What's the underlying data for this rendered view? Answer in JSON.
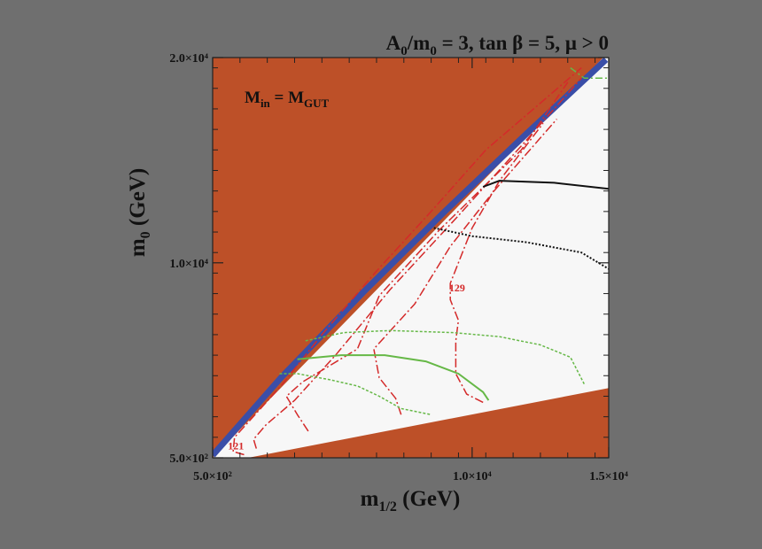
{
  "page": {
    "background": "#6f6f6f"
  },
  "chart_data": {
    "type": "line",
    "title": {
      "main_a": "A",
      "sub_a": "0",
      "main_b": "/m",
      "sub_b": "0",
      "rest": " = 3, tan β = 5, μ > 0"
    },
    "annotation": {
      "main_a": "M",
      "sub_a": "in",
      "main_b": " = M",
      "sub_b": "GUT"
    },
    "xlabel": {
      "main": "m",
      "sub": "1/2",
      "rest": " (GeV)"
    },
    "ylabel": {
      "main": "m",
      "sub": "0",
      "rest": " (GeV)"
    },
    "xlim": [
      500,
      15000
    ],
    "ylim": [
      500,
      20000
    ],
    "x_ticks": [
      {
        "value": 500,
        "label": "5.0×10²"
      },
      {
        "value": 10000,
        "label": "1.0×10⁴"
      },
      {
        "value": 15000,
        "label": "1.5×10⁴"
      }
    ],
    "y_ticks": [
      {
        "value": 500,
        "label": "5.0×10²"
      },
      {
        "value": 10000,
        "label": "1.0×10⁴"
      },
      {
        "value": 20000,
        "label": "2.0×10⁴"
      }
    ],
    "x_minor_step": 1000,
    "y_minor_step": 1000,
    "grid": false,
    "colors": {
      "excluded": "#bd5028",
      "dm_strip": "#3a4ea8",
      "mh_contour": "#d42a2a",
      "green": "#66b847",
      "black": "#111111",
      "plot_bg": "#f7f7f7"
    },
    "regions": [
      {
        "name": "excluded-upper-left",
        "color": "#bd5028",
        "points": [
          [
            500,
            500
          ],
          [
            500,
            20000
          ],
          [
            14800,
            20000
          ]
        ]
      },
      {
        "name": "excluded-lower",
        "color": "#bd5028",
        "points": [
          [
            1800,
            500
          ],
          [
            15000,
            3900
          ],
          [
            15000,
            500
          ]
        ]
      }
    ],
    "strips": [
      {
        "name": "dm-strip",
        "color": "#3a4ea8",
        "width": 7,
        "points": [
          [
            500,
            620
          ],
          [
            3000,
            4400
          ],
          [
            6000,
            8550
          ],
          [
            9000,
            12500
          ],
          [
            12000,
            16300
          ],
          [
            14900,
            19900
          ]
        ]
      }
    ],
    "series": [
      {
        "color": "#d42a2a",
        "dash": "10,3,2,3",
        "width": 1.5,
        "points": [
          [
            1650,
            650
          ],
          [
            1250,
            800
          ],
          [
            1300,
            1500
          ],
          [
            1850,
            2300
          ],
          [
            3000,
            4000
          ],
          [
            4500,
            6500
          ],
          [
            6500,
            9600
          ],
          [
            8500,
            12500
          ],
          [
            10500,
            15500
          ],
          [
            14000,
            19500
          ]
        ]
      },
      {
        "color": "#d42a2a",
        "dash": "10,3,2,3",
        "width": 1.5,
        "points": [
          [
            2100,
            950
          ],
          [
            2000,
            1400
          ],
          [
            2450,
            2100
          ],
          [
            3500,
            3300
          ],
          [
            5000,
            5500
          ],
          [
            7000,
            8700
          ],
          [
            9500,
            12300
          ],
          [
            11800,
            15700
          ],
          [
            14000,
            19000
          ]
        ]
      },
      {
        "color": "#d42a2a",
        "dash": "10,3,2,3",
        "width": 1.5,
        "points": [
          [
            4000,
            1800
          ],
          [
            3600,
            2600
          ],
          [
            3200,
            3500
          ],
          [
            3800,
            4200
          ],
          [
            5800,
            5800
          ],
          [
            6600,
            8400
          ],
          [
            8800,
            11600
          ],
          [
            11800,
            15500
          ],
          [
            13500,
            18800
          ]
        ]
      },
      {
        "color": "#d42a2a",
        "dash": "10,3,2,3",
        "width": 1.5,
        "points": [
          [
            7400,
            2600
          ],
          [
            7200,
            3400
          ],
          [
            6600,
            4400
          ],
          [
            6400,
            5800
          ],
          [
            7900,
            8000
          ],
          [
            9200,
            10800
          ],
          [
            10800,
            13500
          ],
          [
            13100,
            17000
          ]
        ]
      },
      {
        "color": "#d42a2a",
        "dash": "10,3,2,3",
        "width": 1.5,
        "points": [
          [
            10400,
            3200
          ],
          [
            9800,
            3600
          ],
          [
            9400,
            4600
          ],
          [
            9400,
            6200
          ],
          [
            9500,
            7200
          ],
          [
            9200,
            8200
          ],
          [
            9200,
            9000
          ],
          [
            10000,
            11700
          ],
          [
            11000,
            14000
          ],
          [
            12600,
            16800
          ]
        ]
      },
      {
        "color": "#66b847",
        "dash": "",
        "width": 2,
        "points": [
          [
            3600,
            5300
          ],
          [
            5200,
            5500
          ],
          [
            6800,
            5500
          ],
          [
            8300,
            5200
          ],
          [
            9500,
            4600
          ],
          [
            10400,
            3700
          ],
          [
            10600,
            3300
          ]
        ]
      },
      {
        "color": "#66b847",
        "dash": "3,2",
        "width": 1.5,
        "points": [
          [
            3900,
            6200
          ],
          [
            5300,
            6600
          ],
          [
            7000,
            6700
          ],
          [
            9300,
            6600
          ],
          [
            11000,
            6400
          ],
          [
            12500,
            6000
          ],
          [
            13600,
            5400
          ],
          [
            14100,
            4100
          ]
        ]
      },
      {
        "color": "#66b847",
        "dash": "3,2",
        "width": 1.5,
        "points": [
          [
            2950,
            4600
          ],
          [
            3600,
            4600
          ],
          [
            4800,
            4300
          ],
          [
            5800,
            4000
          ],
          [
            6600,
            3500
          ],
          [
            7400,
            2900
          ],
          [
            8500,
            2600
          ]
        ]
      },
      {
        "color": "#66b847",
        "dash": "8,3,2,3",
        "width": 1.5,
        "points": [
          [
            13600,
            19500
          ],
          [
            14100,
            19000
          ],
          [
            15000,
            19000
          ]
        ]
      },
      {
        "color": "#111111",
        "dash": "",
        "width": 2,
        "points": [
          [
            10400,
            13700
          ],
          [
            11000,
            14000
          ],
          [
            13000,
            13900
          ],
          [
            15000,
            13600
          ]
        ]
      },
      {
        "color": "#111111",
        "dash": "2,2",
        "width": 2,
        "points": [
          [
            8600,
            11700
          ],
          [
            10000,
            11300
          ],
          [
            12000,
            11000
          ],
          [
            14000,
            10500
          ],
          [
            15000,
            9700
          ]
        ]
      }
    ],
    "data_labels": [
      {
        "text": "121",
        "x": 1350,
        "y": 900
      },
      {
        "text": "129",
        "x": 9450,
        "y": 8600
      }
    ]
  }
}
